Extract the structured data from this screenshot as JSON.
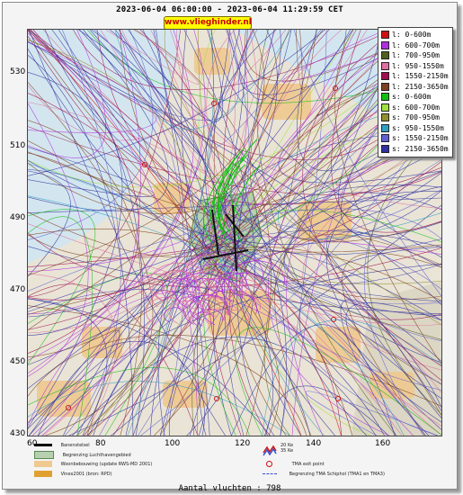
{
  "header": {
    "title": "2023-06-04 06:00:00 - 2023-06-04 11:29:59 CET",
    "brand": "www.vlieghinder.nl"
  },
  "axes": {
    "y_ticks": [
      "530",
      "510",
      "490",
      "470",
      "450",
      "430"
    ],
    "x_ticks": [
      "60",
      "80",
      "100",
      "120",
      "140",
      "160"
    ]
  },
  "legend": {
    "items": [
      {
        "label": "l: 0-600m",
        "color": "#d01010"
      },
      {
        "label": "l: 600-700m",
        "color": "#b030e0"
      },
      {
        "label": "l: 700-950m",
        "color": "#506020"
      },
      {
        "label": "l: 950-1550m",
        "color": "#e070a0"
      },
      {
        "label": "l: 1550-2150m",
        "color": "#a01050"
      },
      {
        "label": "l: 2150-3650m",
        "color": "#804020"
      },
      {
        "label": "s: 0-600m",
        "color": "#10c010"
      },
      {
        "label": "s: 600-700m",
        "color": "#a0e040"
      },
      {
        "label": "s: 700-950m",
        "color": "#909030"
      },
      {
        "label": "s: 950-1550m",
        "color": "#30a0c0"
      },
      {
        "label": "s: 1550-2150m",
        "color": "#6060d0"
      },
      {
        "label": "s: 2150-3650m",
        "color": "#3030a0"
      }
    ]
  },
  "map_key": {
    "runway": "Banenstelsel",
    "airport_boundary": "Begrenzing Luchthavengebied",
    "housing": "Woonbebouwing (update RWS-MD 2001)",
    "vinex": "Vinex2001 (bron: RPD)",
    "ke_20": "20 Ke",
    "ke_35": "35 Ke",
    "tma_exit": "TMA exit point",
    "tma_boundary": "Begrenzing TMA Schiphol  (TMA1 en TMA3)"
  },
  "footer": {
    "count": "Aantal vluchten : 798"
  },
  "colors": {
    "water": "#d3e6ef",
    "land": "#e9e4d6",
    "town": "#efc98f",
    "airport_area": "#b7d0b0",
    "track_high_depart": "#3030a0",
    "track_high_land": "#804020"
  }
}
